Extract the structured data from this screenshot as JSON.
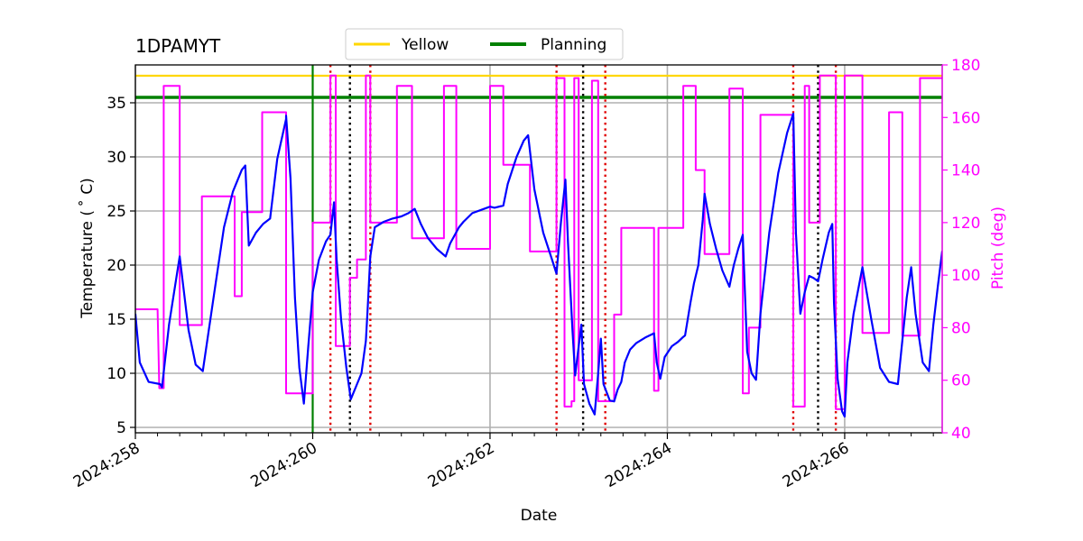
{
  "chart_data": {
    "type": "line",
    "title": "1DPAMYT",
    "xlabel": "Date",
    "ylabel": "Temperature ($^\\circ$C)",
    "ylabel_display": "Temperature ( ˚ C)",
    "y2label": "Pitch (deg)",
    "xlim": [
      258,
      267.1
    ],
    "ylim": [
      4.5,
      38.5
    ],
    "y2lim": [
      40,
      180
    ],
    "grid": true,
    "legend_placement": "top-center",
    "x_ticks": [
      {
        "value": 258,
        "label": "2024:258"
      },
      {
        "value": 260,
        "label": "2024:260"
      },
      {
        "value": 262,
        "label": "2024:262"
      },
      {
        "value": 264,
        "label": "2024:264"
      },
      {
        "value": 266,
        "label": "2024:266"
      }
    ],
    "y_ticks": [
      5,
      10,
      15,
      20,
      25,
      30,
      35
    ],
    "y2_ticks": [
      40,
      60,
      80,
      100,
      120,
      140,
      160,
      180
    ],
    "limits": [
      {
        "name": "Yellow",
        "value": 37.5,
        "color": "#ffd700"
      },
      {
        "name": "Planning",
        "value": 35.5,
        "color": "#008000"
      }
    ],
    "now_line": {
      "x": 260.0,
      "color": "#008000"
    },
    "red_dotted_x": [
      260.2,
      260.65,
      262.75,
      263.3,
      265.42,
      265.9
    ],
    "black_dotted_x": [
      260.42,
      263.05,
      265.7
    ],
    "temperature": {
      "color": "#0000ff",
      "points": [
        [
          258.0,
          15.5
        ],
        [
          258.05,
          11.0
        ],
        [
          258.15,
          9.2
        ],
        [
          258.28,
          9.0
        ],
        [
          258.3,
          8.7
        ],
        [
          258.38,
          14.5
        ],
        [
          258.5,
          20.8
        ],
        [
          258.6,
          14.0
        ],
        [
          258.68,
          10.8
        ],
        [
          258.76,
          10.2
        ],
        [
          258.9,
          18.0
        ],
        [
          259.0,
          23.5
        ],
        [
          259.1,
          26.8
        ],
        [
          259.2,
          28.8
        ],
        [
          259.24,
          29.2
        ],
        [
          259.28,
          21.8
        ],
        [
          259.36,
          23.0
        ],
        [
          259.44,
          23.8
        ],
        [
          259.52,
          24.3
        ],
        [
          259.6,
          29.8
        ],
        [
          259.7,
          33.5
        ],
        [
          259.7,
          33.8
        ],
        [
          259.75,
          28.0
        ],
        [
          259.8,
          17.0
        ],
        [
          259.85,
          10.5
        ],
        [
          259.9,
          7.2
        ],
        [
          259.95,
          12.5
        ],
        [
          260.0,
          17.5
        ],
        [
          260.07,
          20.5
        ],
        [
          260.15,
          22.2
        ],
        [
          260.2,
          22.8
        ],
        [
          260.24,
          25.8
        ],
        [
          260.27,
          20.5
        ],
        [
          260.32,
          15.0
        ],
        [
          260.38,
          10.5
        ],
        [
          260.43,
          7.6
        ],
        [
          260.5,
          9.0
        ],
        [
          260.55,
          10.0
        ],
        [
          260.6,
          13.0
        ],
        [
          260.62,
          16.0
        ],
        [
          260.65,
          20.8
        ],
        [
          260.7,
          23.5
        ],
        [
          260.8,
          24.0
        ],
        [
          260.9,
          24.3
        ],
        [
          261.0,
          24.5
        ],
        [
          261.08,
          24.8
        ],
        [
          261.15,
          25.2
        ],
        [
          261.22,
          23.8
        ],
        [
          261.3,
          22.5
        ],
        [
          261.4,
          21.5
        ],
        [
          261.5,
          20.8
        ],
        [
          261.55,
          22.0
        ],
        [
          261.65,
          23.5
        ],
        [
          261.7,
          24.0
        ],
        [
          261.8,
          24.8
        ],
        [
          261.9,
          25.1
        ],
        [
          262.0,
          25.4
        ],
        [
          262.05,
          25.3
        ],
        [
          262.15,
          25.5
        ],
        [
          262.2,
          27.5
        ],
        [
          262.3,
          30.0
        ],
        [
          262.38,
          31.5
        ],
        [
          262.43,
          32.0
        ],
        [
          262.5,
          27.0
        ],
        [
          262.6,
          23.0
        ],
        [
          262.7,
          20.5
        ],
        [
          262.75,
          19.2
        ],
        [
          262.8,
          24.0
        ],
        [
          262.85,
          27.9
        ],
        [
          262.88,
          22.0
        ],
        [
          262.93,
          14.0
        ],
        [
          262.96,
          9.8
        ],
        [
          263.0,
          12.5
        ],
        [
          263.03,
          14.5
        ],
        [
          263.06,
          9.0
        ],
        [
          263.12,
          7.2
        ],
        [
          263.18,
          6.2
        ],
        [
          263.22,
          10.0
        ],
        [
          263.25,
          13.2
        ],
        [
          263.28,
          9.0
        ],
        [
          263.35,
          7.5
        ],
        [
          263.4,
          7.4
        ],
        [
          263.44,
          8.5
        ],
        [
          263.48,
          9.2
        ],
        [
          263.52,
          11.0
        ],
        [
          263.58,
          12.2
        ],
        [
          263.65,
          12.8
        ],
        [
          263.75,
          13.3
        ],
        [
          263.85,
          13.7
        ],
        [
          263.88,
          11.0
        ],
        [
          263.92,
          9.5
        ],
        [
          263.97,
          11.5
        ],
        [
          264.05,
          12.5
        ],
        [
          264.12,
          12.9
        ],
        [
          264.17,
          13.3
        ],
        [
          264.2,
          13.5
        ],
        [
          264.26,
          16.5
        ],
        [
          264.3,
          18.3
        ],
        [
          264.35,
          20.0
        ],
        [
          264.4,
          24.2
        ],
        [
          264.42,
          26.6
        ],
        [
          264.48,
          23.8
        ],
        [
          264.55,
          21.5
        ],
        [
          264.62,
          19.5
        ],
        [
          264.7,
          18.0
        ],
        [
          264.75,
          20.0
        ],
        [
          264.8,
          21.5
        ],
        [
          264.85,
          22.8
        ],
        [
          264.9,
          12.0
        ],
        [
          264.95,
          10.0
        ],
        [
          265.0,
          9.4
        ],
        [
          265.05,
          15.5
        ],
        [
          265.15,
          23.0
        ],
        [
          265.25,
          28.5
        ],
        [
          265.35,
          32.2
        ],
        [
          265.42,
          34.0
        ],
        [
          265.45,
          23.0
        ],
        [
          265.5,
          15.5
        ],
        [
          265.55,
          17.5
        ],
        [
          265.6,
          19.0
        ],
        [
          265.65,
          18.8
        ],
        [
          265.7,
          18.5
        ],
        [
          265.75,
          20.5
        ],
        [
          265.82,
          23.0
        ],
        [
          265.86,
          23.8
        ],
        [
          265.88,
          16.5
        ],
        [
          265.92,
          9.5
        ],
        [
          265.97,
          6.5
        ],
        [
          266.0,
          6.0
        ],
        [
          266.03,
          11.0
        ],
        [
          266.1,
          15.5
        ],
        [
          266.2,
          19.8
        ],
        [
          266.3,
          15.0
        ],
        [
          266.4,
          10.5
        ],
        [
          266.5,
          9.2
        ],
        [
          266.6,
          9.0
        ],
        [
          266.65,
          13.0
        ],
        [
          266.7,
          17.0
        ],
        [
          266.75,
          19.8
        ],
        [
          266.8,
          15.5
        ],
        [
          266.88,
          11.0
        ],
        [
          266.95,
          10.2
        ],
        [
          267.0,
          14.5
        ],
        [
          267.05,
          18.0
        ],
        [
          267.1,
          21.3
        ]
      ]
    },
    "pitch": {
      "color": "#ff00ff",
      "points": [
        [
          258.0,
          87
        ],
        [
          258.25,
          87
        ],
        [
          258.27,
          57
        ],
        [
          258.32,
          57
        ],
        [
          258.32,
          172
        ],
        [
          258.5,
          172
        ],
        [
          258.5,
          81
        ],
        [
          258.75,
          81
        ],
        [
          258.75,
          130
        ],
        [
          259.12,
          130
        ],
        [
          259.12,
          92
        ],
        [
          259.2,
          92
        ],
        [
          259.2,
          124
        ],
        [
          259.43,
          124
        ],
        [
          259.43,
          162
        ],
        [
          259.7,
          162
        ],
        [
          259.7,
          55
        ],
        [
          260.0,
          55
        ],
        [
          260.0,
          120
        ],
        [
          260.2,
          120
        ],
        [
          260.2,
          176
        ],
        [
          260.26,
          176
        ],
        [
          260.26,
          73
        ],
        [
          260.42,
          73
        ],
        [
          260.42,
          99
        ],
        [
          260.5,
          99
        ],
        [
          260.5,
          106
        ],
        [
          260.6,
          106
        ],
        [
          260.6,
          176
        ],
        [
          260.65,
          176
        ],
        [
          260.65,
          120
        ],
        [
          260.95,
          120
        ],
        [
          260.95,
          172
        ],
        [
          261.12,
          172
        ],
        [
          261.12,
          114
        ],
        [
          261.48,
          114
        ],
        [
          261.48,
          172
        ],
        [
          261.62,
          172
        ],
        [
          261.62,
          110
        ],
        [
          262.0,
          110
        ],
        [
          262.0,
          172
        ],
        [
          262.15,
          172
        ],
        [
          262.15,
          142
        ],
        [
          262.45,
          142
        ],
        [
          262.45,
          109
        ],
        [
          262.75,
          109
        ],
        [
          262.75,
          175
        ],
        [
          262.84,
          175
        ],
        [
          262.84,
          50
        ],
        [
          262.92,
          50
        ],
        [
          262.92,
          52
        ],
        [
          262.95,
          52
        ],
        [
          262.95,
          175
        ],
        [
          263.0,
          175
        ],
        [
          263.0,
          60
        ],
        [
          263.15,
          60
        ],
        [
          263.15,
          174
        ],
        [
          263.22,
          174
        ],
        [
          263.22,
          52
        ],
        [
          263.3,
          52
        ],
        [
          263.3,
          52
        ],
        [
          263.4,
          52
        ],
        [
          263.4,
          85
        ],
        [
          263.48,
          85
        ],
        [
          263.48,
          118
        ],
        [
          263.85,
          118
        ],
        [
          263.85,
          56
        ],
        [
          263.9,
          56
        ],
        [
          263.9,
          118
        ],
        [
          264.18,
          118
        ],
        [
          264.18,
          172
        ],
        [
          264.32,
          172
        ],
        [
          264.32,
          140
        ],
        [
          264.42,
          140
        ],
        [
          264.42,
          108
        ],
        [
          264.7,
          108
        ],
        [
          264.7,
          171
        ],
        [
          264.85,
          171
        ],
        [
          264.85,
          55
        ],
        [
          264.92,
          55
        ],
        [
          264.92,
          80
        ],
        [
          265.05,
          80
        ],
        [
          265.05,
          161
        ],
        [
          265.42,
          161
        ],
        [
          265.42,
          50
        ],
        [
          265.55,
          50
        ],
        [
          265.55,
          172
        ],
        [
          265.6,
          172
        ],
        [
          265.6,
          120
        ],
        [
          265.72,
          120
        ],
        [
          265.72,
          176
        ],
        [
          265.9,
          176
        ],
        [
          265.9,
          49
        ],
        [
          266.0,
          49
        ],
        [
          266.0,
          176
        ],
        [
          266.2,
          176
        ],
        [
          266.2,
          78
        ],
        [
          266.5,
          78
        ],
        [
          266.5,
          162
        ],
        [
          266.65,
          162
        ],
        [
          266.65,
          77
        ],
        [
          266.85,
          77
        ],
        [
          266.85,
          175
        ],
        [
          267.1,
          175
        ]
      ]
    }
  }
}
